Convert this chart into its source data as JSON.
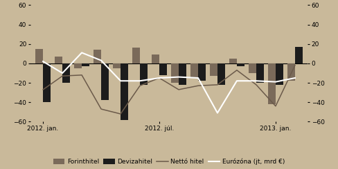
{
  "months": 14,
  "forint_hitel": [
    15,
    7,
    -5,
    14,
    -5,
    16,
    9,
    -20,
    -15,
    -13,
    5,
    -10,
    -42,
    -18
  ],
  "deviza_hitel": [
    -40,
    -20,
    -3,
    -38,
    -58,
    -22,
    -12,
    -22,
    -18,
    -22,
    -3,
    -20,
    -22,
    17
  ],
  "netto_hitel": [
    -27,
    -13,
    -12,
    -47,
    -52,
    -23,
    -15,
    -27,
    -23,
    -22,
    -7,
    -22,
    -44,
    -2
  ],
  "eurozna": [
    2,
    -10,
    11,
    3,
    -18,
    -18,
    -15,
    -14,
    -15,
    -51,
    -18,
    -18,
    -19,
    -15
  ],
  "x_tick_positions": [
    0,
    6,
    12
  ],
  "x_tick_labels": [
    "2012. jan.",
    "2012. júl.",
    "2013. jan."
  ],
  "ylim": [
    -60,
    60
  ],
  "yticks": [
    -60,
    -40,
    -20,
    0,
    20,
    40,
    60
  ],
  "bg_color": "#c9b99a",
  "bar_color_forint": "#7a6a5a",
  "bar_color_deviza": "#1c1c1c",
  "line_color_netto": "#6b5a4a",
  "line_color_eurozna": "#ffffff",
  "legend_labels": [
    "Forinthitel",
    "Devizahitel",
    "Nettó hitel",
    "Eurózóna (jt, mrd €)"
  ]
}
